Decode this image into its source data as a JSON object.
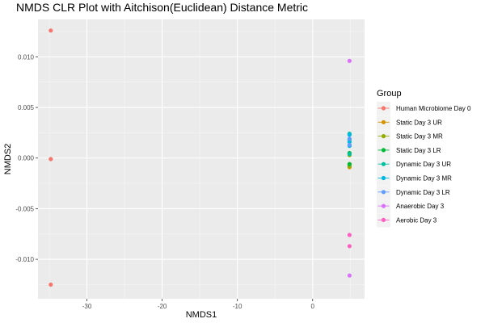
{
  "chart_data": {
    "type": "scatter",
    "title": "NMDS CLR Plot with Aitchison(Euclidean) Distance Metric",
    "xlabel": "NMDS1",
    "ylabel": "NMDS2",
    "xlim": [
      -36.5,
      6.9
    ],
    "ylim": [
      -0.0139,
      0.0137
    ],
    "x_ticks": [
      -30,
      -20,
      -10,
      0
    ],
    "x_tick_labels": [
      "-30",
      "-20",
      "-10",
      "0"
    ],
    "y_ticks": [
      -0.01,
      -0.005,
      0.0,
      0.005,
      0.01
    ],
    "y_tick_labels": [
      "-0.010",
      "-0.005",
      "0.000",
      "0.005",
      "0.010"
    ],
    "grid": true,
    "legend_title": "Group",
    "legend_position": "right",
    "series": [
      {
        "name": "Human Microbiome Day 0",
        "color": "#F8766D",
        "points": [
          [
            -34.8,
            0.0126
          ],
          [
            -34.8,
            -0.0001
          ],
          [
            -34.8,
            -0.0125
          ]
        ]
      },
      {
        "name": "Static Day 3 UR",
        "color": "#D39200",
        "points": [
          [
            4.9,
            -0.0009
          ],
          [
            4.9,
            -0.0006
          ]
        ]
      },
      {
        "name": "Static Day 3 MR",
        "color": "#93AA00",
        "points": [
          [
            4.9,
            -0.0008
          ],
          [
            4.9,
            0.0003
          ]
        ]
      },
      {
        "name": "Static Day 3 LR",
        "color": "#00BA38",
        "points": [
          [
            4.9,
            -0.0006
          ],
          [
            4.9,
            0.0005
          ]
        ]
      },
      {
        "name": "Dynamic Day 3 UR",
        "color": "#00C19F",
        "points": [
          [
            4.9,
            0.0024
          ],
          [
            4.9,
            0.0018
          ],
          [
            4.9,
            0.0004
          ]
        ]
      },
      {
        "name": "Dynamic Day 3 MR",
        "color": "#00B9E3",
        "points": [
          [
            4.9,
            0.0023
          ],
          [
            4.9,
            0.0012
          ],
          [
            4.9,
            0.0016
          ]
        ]
      },
      {
        "name": "Dynamic Day 3 LR",
        "color": "#619CFF",
        "points": [
          [
            4.9,
            0.0013
          ],
          [
            4.9,
            0.0019
          ]
        ]
      },
      {
        "name": "Anaerobic Day 3",
        "color": "#DB72FB",
        "points": [
          [
            4.9,
            0.0096
          ],
          [
            4.9,
            -0.0116
          ]
        ]
      },
      {
        "name": "Aerobic Day 3",
        "color": "#FF61C3",
        "points": [
          [
            4.9,
            -0.0076
          ],
          [
            4.9,
            -0.0087
          ]
        ]
      }
    ]
  }
}
